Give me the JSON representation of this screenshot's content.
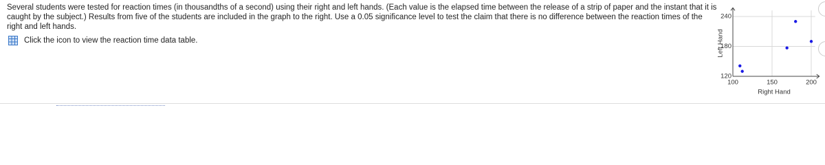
{
  "problem": {
    "text": "Several students were tested for reaction times (in thousandths of a second) using their right and left hands. (Each value is the elapsed time between the release of a strip of paper and the instant that it is caught by the subject.) Results from five of the students are included in the graph to the right. Use a 0.05 significance level to test the claim that there is no difference between the reaction times of the right and left hands.",
    "hint": "Click the icon to view the reaction time data table."
  },
  "chart_data": {
    "type": "scatter",
    "x_label": "Right Hand",
    "y_label": "Left Hand",
    "series": [
      {
        "color": "#1a1ae6",
        "x": [
          180,
          200,
          169,
          109,
          112
        ],
        "values": [
          230,
          190,
          177,
          141,
          130
        ]
      }
    ],
    "xlim": [
      100,
      205
    ],
    "ylim": [
      120,
      252
    ],
    "xticks": [
      100,
      150,
      200
    ],
    "yticks": [
      120,
      180,
      240
    ],
    "grid": true
  }
}
